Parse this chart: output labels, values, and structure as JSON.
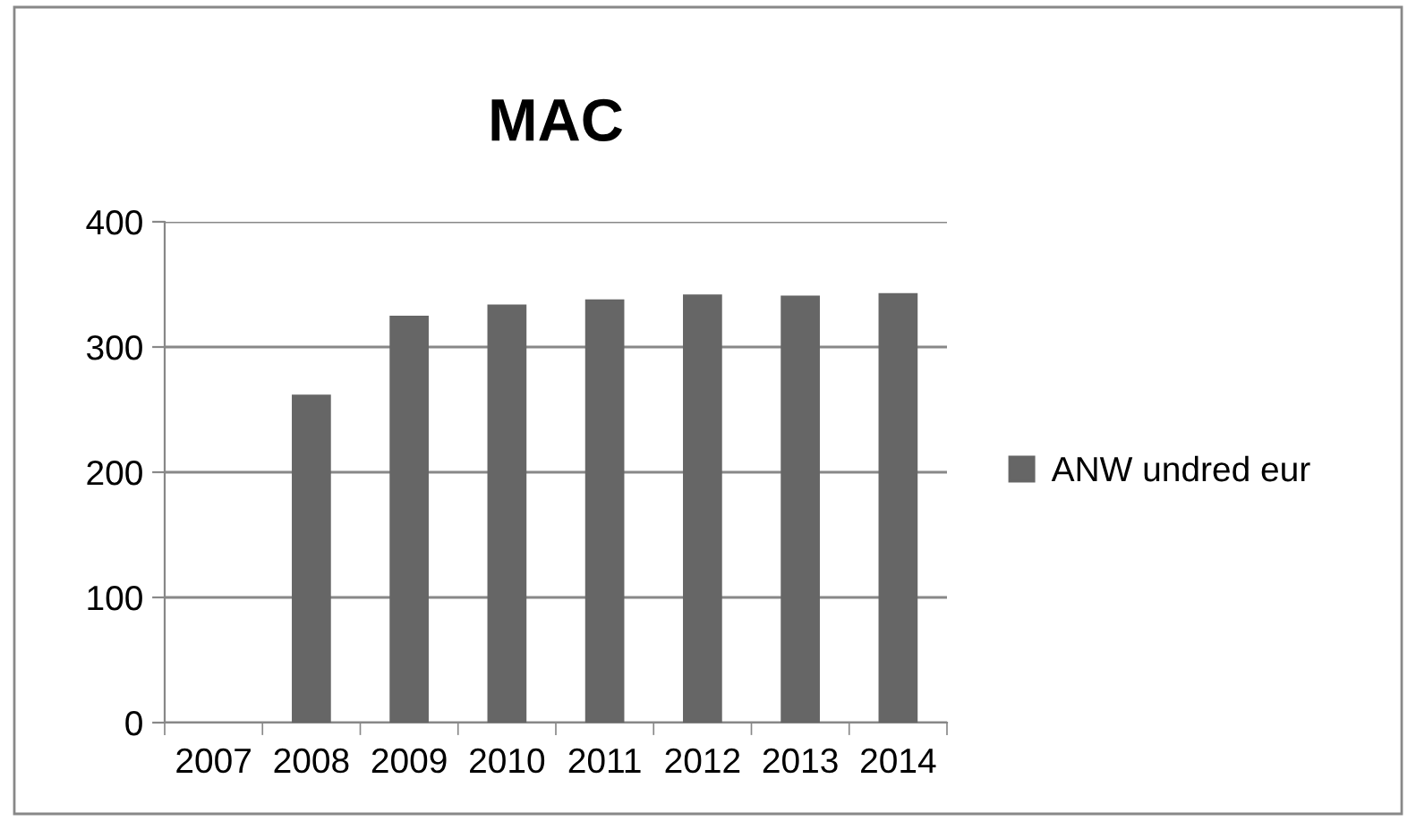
{
  "chart_data": {
    "type": "bar",
    "title": "MAC",
    "categories": [
      "2007",
      "2008",
      "2009",
      "2010",
      "2011",
      "2012",
      "2013",
      "2014"
    ],
    "series": [
      {
        "name": "ANW undred eur",
        "color": "#666666",
        "values": [
          null,
          262,
          325,
          334,
          338,
          342,
          341,
          343
        ]
      }
    ],
    "ylim": [
      0,
      400
    ],
    "yticks": [
      0,
      100,
      200,
      300,
      400
    ],
    "grid": "y",
    "legend": "right"
  }
}
